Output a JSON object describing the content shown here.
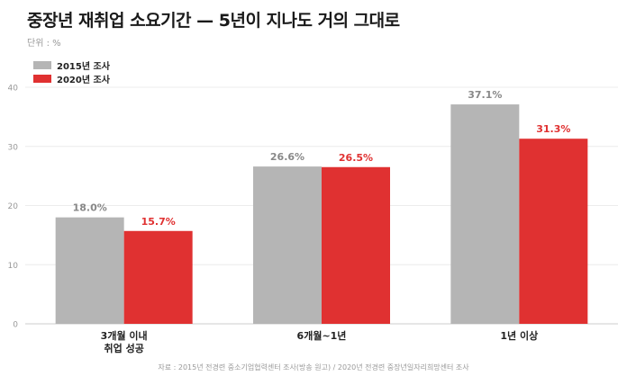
{
  "title": "중장년 재취업 소요기간 — 5년이 지나도 거의 그대로",
  "unit_label": "단위 : %",
  "source": "자료 : 2015년 전경련 중소기업협력센터 조사(방송 원고) / 2020년 전경련 중장년일자리희망센터 조사",
  "colors": {
    "series_2015": "#b5b5b5",
    "series_2020": "#e03131",
    "label_2015": "#888888",
    "label_2020": "#e03131"
  },
  "chart_data": {
    "type": "bar",
    "title": "중장년 재취업 소요기간 — 5년이 지나도 거의 그대로",
    "ylabel": "",
    "xlabel": "",
    "ylim": [
      0,
      40
    ],
    "yticks": [
      0,
      10,
      20,
      30,
      40
    ],
    "grid": true,
    "legend_position": "top-left",
    "categories": [
      [
        "3개월 이내",
        "취업 성공"
      ],
      [
        "6개월~1년"
      ],
      [
        "1년 이상"
      ]
    ],
    "series": [
      {
        "name": "2015년 조사",
        "values": [
          18.0,
          26.6,
          37.1
        ],
        "labels": [
          "18.0%",
          "26.6%",
          "37.1%"
        ]
      },
      {
        "name": "2020년 조사",
        "values": [
          15.7,
          26.5,
          31.3
        ],
        "labels": [
          "15.7%",
          "26.5%",
          "31.3%"
        ]
      }
    ]
  }
}
